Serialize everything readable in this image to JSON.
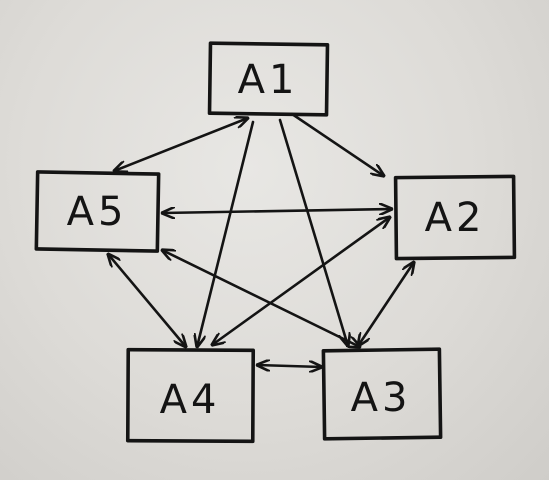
{
  "nodes": [
    {
      "id": "A1",
      "label": "A1"
    },
    {
      "id": "A2",
      "label": "A2"
    },
    {
      "id": "A3",
      "label": "A3"
    },
    {
      "id": "A4",
      "label": "A4"
    },
    {
      "id": "A5",
      "label": "A5"
    }
  ],
  "edges": [
    {
      "from": "A1",
      "to": "A5",
      "direction": "both"
    },
    {
      "from": "A1",
      "to": "A2",
      "direction": "forward"
    },
    {
      "from": "A1",
      "to": "A3",
      "direction": "forward"
    },
    {
      "from": "A1",
      "to": "A4",
      "direction": "forward"
    },
    {
      "from": "A5",
      "to": "A2",
      "direction": "both"
    },
    {
      "from": "A5",
      "to": "A3",
      "direction": "both"
    },
    {
      "from": "A5",
      "to": "A4",
      "direction": "both"
    },
    {
      "from": "A4",
      "to": "A2",
      "direction": "both"
    },
    {
      "from": "A2",
      "to": "A3",
      "direction": "both"
    },
    {
      "from": "A4",
      "to": "A3",
      "direction": "both"
    }
  ]
}
